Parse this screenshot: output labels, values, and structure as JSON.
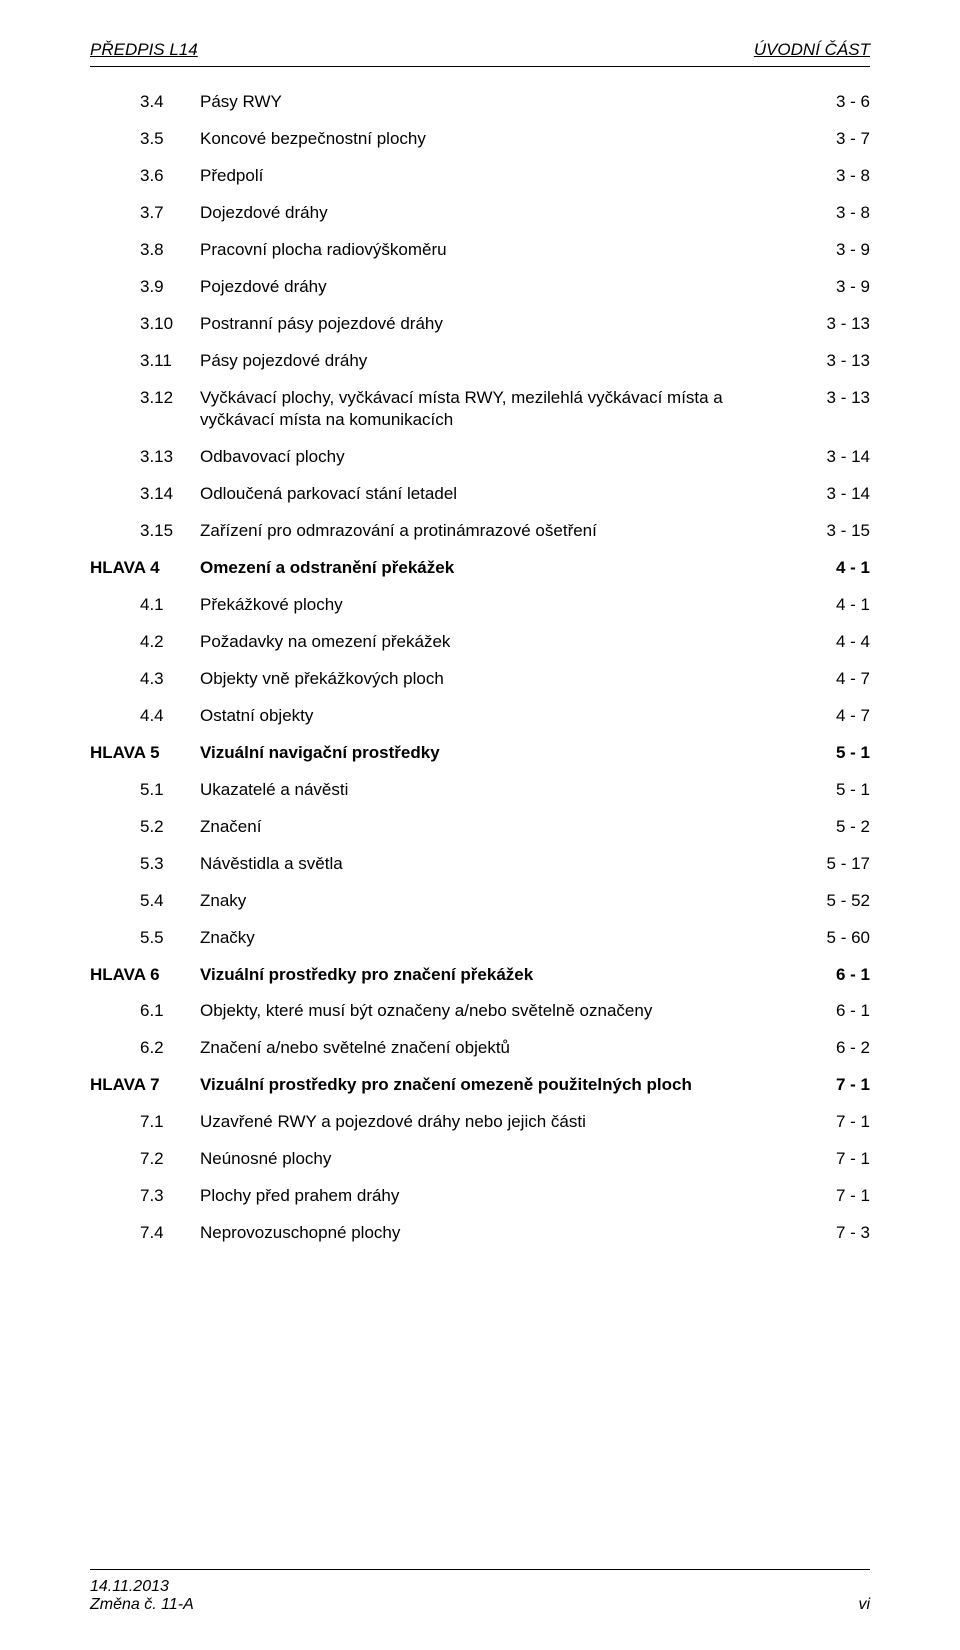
{
  "header": {
    "left": "PŘEDPIS L14",
    "right": "ÚVODNÍ ČÁST"
  },
  "toc": [
    {
      "level": 2,
      "num": "3.4",
      "text": "Pásy RWY",
      "page": "3 - 6"
    },
    {
      "level": 2,
      "num": "3.5",
      "text": "Koncové bezpečnostní plochy",
      "page": "3 - 7"
    },
    {
      "level": 2,
      "num": "3.6",
      "text": "Předpolí",
      "page": "3 - 8"
    },
    {
      "level": 2,
      "num": "3.7",
      "text": "Dojezdové dráhy",
      "page": "3 - 8"
    },
    {
      "level": 2,
      "num": "3.8",
      "text": "Pracovní plocha radiovýškoměru",
      "page": "3 - 9"
    },
    {
      "level": 2,
      "num": "3.9",
      "text": "Pojezdové dráhy",
      "page": "3 - 9"
    },
    {
      "level": 2,
      "num": "3.10",
      "text": "Postranní pásy pojezdové dráhy",
      "page": "3 - 13"
    },
    {
      "level": 2,
      "num": "3.11",
      "text": "Pásy pojezdové dráhy",
      "page": "3 - 13"
    },
    {
      "level": 2,
      "num": "3.12",
      "text": "Vyčkávací plochy, vyčkávací místa RWY, mezilehlá vyčkávací místa a vyčkávací místa na komunikacích",
      "page": "3 - 13"
    },
    {
      "level": 2,
      "num": "3.13",
      "text": "Odbavovací plochy",
      "page": "3 - 14"
    },
    {
      "level": 2,
      "num": "3.14",
      "text": "Odloučená parkovací stání letadel",
      "page": "3 - 14"
    },
    {
      "level": 2,
      "num": "3.15",
      "text": "Zařízení pro odmrazování a protinámrazové ošetření",
      "page": "3 - 15"
    },
    {
      "level": 1,
      "num": "HLAVA 4",
      "text": "Omezení a odstranění překážek",
      "page": "4 - 1"
    },
    {
      "level": 2,
      "num": "4.1",
      "text": "Překážkové plochy",
      "page": "4 - 1"
    },
    {
      "level": 2,
      "num": "4.2",
      "text": "Požadavky na omezení překážek",
      "page": "4 - 4"
    },
    {
      "level": 2,
      "num": "4.3",
      "text": "Objekty vně překážkových ploch",
      "page": "4 - 7"
    },
    {
      "level": 2,
      "num": "4.4",
      "text": "Ostatní objekty",
      "page": "4 - 7"
    },
    {
      "level": 1,
      "num": "HLAVA 5",
      "text": "Vizuální navigační prostředky",
      "page": "5 - 1"
    },
    {
      "level": 2,
      "num": "5.1",
      "text": "Ukazatelé a návěsti",
      "page": "5 - 1"
    },
    {
      "level": 2,
      "num": "5.2",
      "text": "Značení",
      "page": "5 - 2"
    },
    {
      "level": 2,
      "num": "5.3",
      "text": "Návěstidla a světla",
      "page": "5 - 17"
    },
    {
      "level": 2,
      "num": "5.4",
      "text": "Znaky",
      "page": "5 - 52"
    },
    {
      "level": 2,
      "num": "5.5",
      "text": "Značky",
      "page": "5 - 60"
    },
    {
      "level": 1,
      "num": "HLAVA 6",
      "text": "Vizuální prostředky pro značení překážek",
      "page": "6 - 1"
    },
    {
      "level": 2,
      "num": "6.1",
      "text": "Objekty, které musí být označeny a/nebo světelně označeny",
      "page": "6 - 1"
    },
    {
      "level": 2,
      "num": "6.2",
      "text": "Značení a/nebo světelné značení objektů",
      "page": "6 - 2"
    },
    {
      "level": 1,
      "num": "HLAVA 7",
      "text": "Vizuální prostředky pro značení omezeně použitelných ploch",
      "page": "7 - 1"
    },
    {
      "level": 2,
      "num": "7.1",
      "text": "Uzavřené RWY a pojezdové dráhy nebo jejich části",
      "page": "7 - 1"
    },
    {
      "level": 2,
      "num": "7.2",
      "text": "Neúnosné plochy",
      "page": "7 - 1"
    },
    {
      "level": 2,
      "num": "7.3",
      "text": "Plochy před prahem dráhy",
      "page": "7 - 1"
    },
    {
      "level": 2,
      "num": "7.4",
      "text": "Neprovozuschopné plochy",
      "page": "7 - 3"
    }
  ],
  "footer": {
    "date": "14.11.2013",
    "change": "Změna č. 11-A",
    "pagenum": "vi"
  }
}
